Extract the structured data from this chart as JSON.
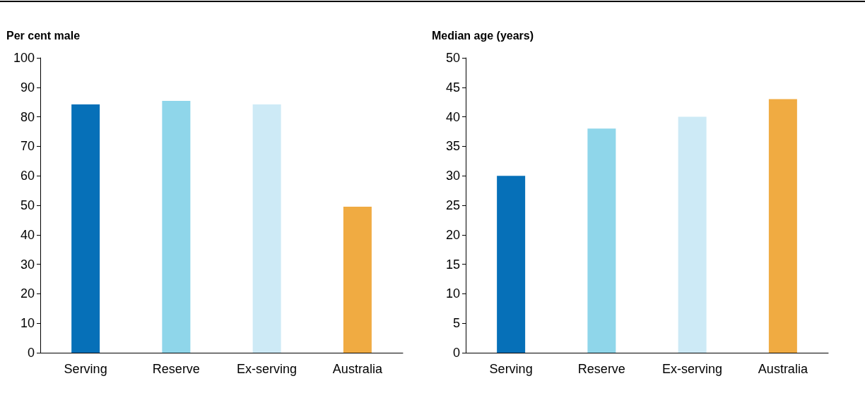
{
  "chart_data": [
    {
      "type": "bar",
      "ylabel": "Per cent male",
      "categories": [
        "Serving",
        "Reserve",
        "Ex-serving",
        "Australia"
      ],
      "values": [
        84.2,
        85.4,
        84.2,
        49.5
      ],
      "colors": [
        "#0670b8",
        "#8fd6ea",
        "#cdeaf6",
        "#f0ab42"
      ],
      "ylim": [
        0,
        100
      ],
      "yticks": [
        0,
        10,
        20,
        30,
        40,
        50,
        60,
        70,
        80,
        90,
        100
      ],
      "grid": false
    },
    {
      "type": "bar",
      "ylabel": "Median age (years)",
      "categories": [
        "Serving",
        "Reserve",
        "Ex-serving",
        "Australia"
      ],
      "values": [
        30,
        38,
        40,
        43
      ],
      "colors": [
        "#0670b8",
        "#8fd6ea",
        "#cdeaf6",
        "#f0ab42"
      ],
      "ylim": [
        0,
        50
      ],
      "yticks": [
        0,
        5,
        10,
        15,
        20,
        25,
        30,
        35,
        40,
        45,
        50
      ],
      "grid": false
    }
  ]
}
